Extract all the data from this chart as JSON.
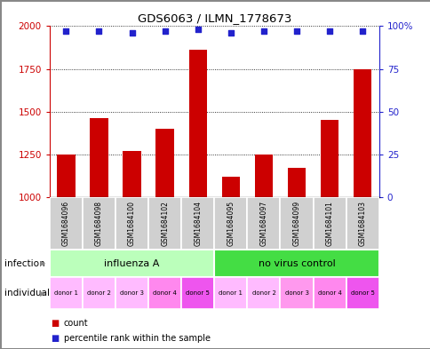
{
  "title": "GDS6063 / ILMN_1778673",
  "samples": [
    "GSM1684096",
    "GSM1684098",
    "GSM1684100",
    "GSM1684102",
    "GSM1684104",
    "GSM1684095",
    "GSM1684097",
    "GSM1684099",
    "GSM1684101",
    "GSM1684103"
  ],
  "counts": [
    1250,
    1460,
    1270,
    1400,
    1860,
    1120,
    1250,
    1170,
    1450,
    1750
  ],
  "percentile_ranks": [
    97,
    97,
    96,
    97,
    98,
    96,
    97,
    97,
    97,
    97
  ],
  "ylim_left": [
    1000,
    2000
  ],
  "ylim_right": [
    0,
    100
  ],
  "yticks_left": [
    1000,
    1250,
    1500,
    1750,
    2000
  ],
  "yticks_right": [
    0,
    25,
    50,
    75,
    100
  ],
  "bar_color": "#cc0000",
  "dot_color": "#2222cc",
  "infection_groups": [
    {
      "label": "influenza A",
      "start": 0,
      "end": 5,
      "color": "#bbffbb"
    },
    {
      "label": "no virus control",
      "start": 5,
      "end": 10,
      "color": "#44dd44"
    }
  ],
  "individual_labels": [
    "donor 1",
    "donor 2",
    "donor 3",
    "donor 4",
    "donor 5",
    "donor 1",
    "donor 2",
    "donor 3",
    "donor 4",
    "donor 5"
  ],
  "individual_colors": [
    "#ffbbff",
    "#ffbbff",
    "#ffbbff",
    "#ff88ee",
    "#ee55ee",
    "#ffbbff",
    "#ffbbff",
    "#ff99ee",
    "#ff88ee",
    "#ee55ee"
  ],
  "sample_box_color": "#d0d0d0",
  "legend_count_color": "#cc0000",
  "legend_dot_color": "#2222cc",
  "infection_label": "infection",
  "individual_label": "individual",
  "count_label": "count",
  "percentile_label": "percentile rank within the sample",
  "left_axis_color": "#cc0000",
  "right_axis_color": "#2222cc",
  "fig_border_color": "#888888"
}
